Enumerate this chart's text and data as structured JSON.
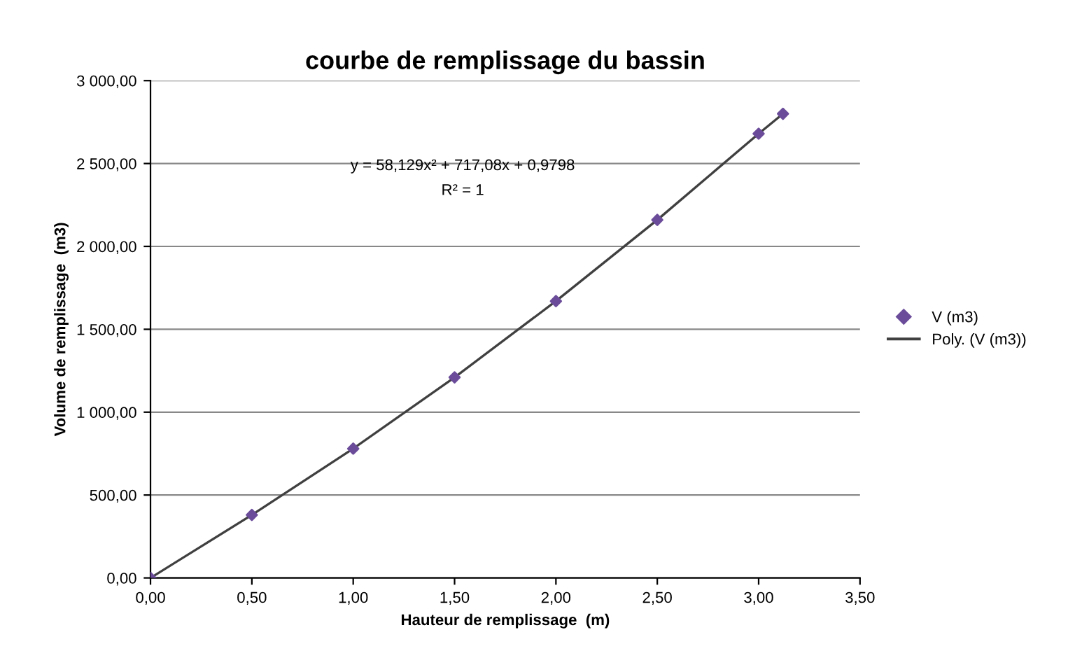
{
  "chart_data": {
    "type": "scatter",
    "title": "courbe de remplissage du bassin",
    "xlabel": "Hauteur de remplissage  (m)",
    "ylabel": "Volume de remplissage  (m3)",
    "annotations": [
      "y = 58,129x² + 717,08x + 0,9798",
      "R² = 1"
    ],
    "series": [
      {
        "name": "V (m3)",
        "color": "#6b4c9a",
        "marker": "diamond",
        "x": [
          0,
          0.5,
          1,
          1.5,
          2,
          2.5,
          3,
          3.12
        ],
        "values": [
          0,
          380,
          780,
          1210,
          1670,
          2160,
          2680,
          2800
        ]
      },
      {
        "name": "Poly. (V (m3))",
        "type": "line",
        "color": "#404040",
        "marker": "none",
        "line_style": "solid",
        "x": [
          0,
          0.5,
          1,
          1.5,
          2,
          2.5,
          3,
          3.12
        ],
        "values": [
          0,
          380,
          780,
          1210,
          1670,
          2160,
          2680,
          2800
        ]
      }
    ],
    "xlim": [
      0,
      3.5
    ],
    "ylim": [
      0,
      3000
    ],
    "xticks": [
      {
        "value": 0,
        "label": "0,00"
      },
      {
        "value": 0.5,
        "label": "0,50"
      },
      {
        "value": 1,
        "label": "1,00"
      },
      {
        "value": 1.5,
        "label": "1,50"
      },
      {
        "value": 2,
        "label": "2,00"
      },
      {
        "value": 2.5,
        "label": "2,50"
      },
      {
        "value": 3,
        "label": "3,00"
      },
      {
        "value": 3.5,
        "label": "3,50"
      }
    ],
    "yticks": [
      {
        "value": 0,
        "label": "0,00"
      },
      {
        "value": 500,
        "label": "500,00"
      },
      {
        "value": 1000,
        "label": "1 000,00"
      },
      {
        "value": 1500,
        "label": "1 500,00"
      },
      {
        "value": 2000,
        "label": "2 000,00"
      },
      {
        "value": 2500,
        "label": "2 500,00"
      },
      {
        "value": 3000,
        "label": "3 000,00"
      }
    ],
    "grid": "y",
    "legend": "right"
  }
}
